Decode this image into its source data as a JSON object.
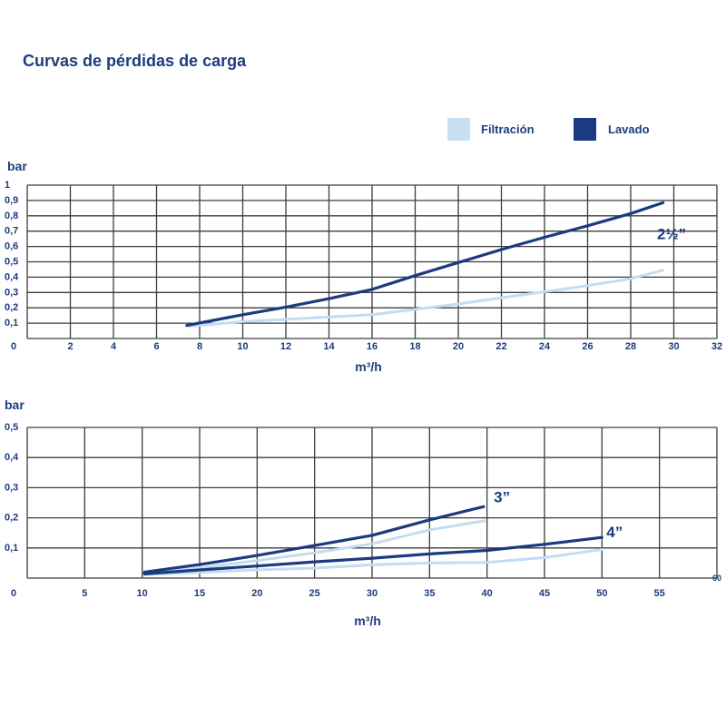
{
  "page": {
    "title": "Curvas de pérdidas de carga"
  },
  "legend": {
    "items": [
      {
        "label": "Filtración",
        "color": "#c8e0f2"
      },
      {
        "label": "Lavado",
        "color": "#1b3a80"
      }
    ]
  },
  "colors": {
    "filtracion": "#c3ddf0",
    "lavado": "#1b3a80",
    "grid": "#3d3d3d",
    "text": "#1c3d7e"
  },
  "chart_data": [
    {
      "type": "line",
      "title": "",
      "ylabel": "bar",
      "xlabel": "m³/h",
      "xlim": [
        0,
        32
      ],
      "ylim": [
        0,
        1
      ],
      "grid": true,
      "x_ticks": [
        {
          "v": 0,
          "label": "0"
        },
        {
          "v": 2,
          "label": "2"
        },
        {
          "v": 4,
          "label": "4"
        },
        {
          "v": 6,
          "label": "6"
        },
        {
          "v": 8,
          "label": "8"
        },
        {
          "v": 10,
          "label": "10"
        },
        {
          "v": 12,
          "label": "12"
        },
        {
          "v": 14,
          "label": "14"
        },
        {
          "v": 16,
          "label": "16"
        },
        {
          "v": 18,
          "label": "18"
        },
        {
          "v": 20,
          "label": "20"
        },
        {
          "v": 22,
          "label": "22"
        },
        {
          "v": 24,
          "label": "24"
        },
        {
          "v": 26,
          "label": "26"
        },
        {
          "v": 28,
          "label": "28"
        },
        {
          "v": 30,
          "label": "30"
        },
        {
          "v": 32,
          "label": "32"
        }
      ],
      "y_ticks": [
        {
          "v": 0.1,
          "label": "0,1"
        },
        {
          "v": 0.2,
          "label": "0,2"
        },
        {
          "v": 0.3,
          "label": "0,3"
        },
        {
          "v": 0.4,
          "label": "0,4"
        },
        {
          "v": 0.5,
          "label": "0,5"
        },
        {
          "v": 0.6,
          "label": "0,6"
        },
        {
          "v": 0.7,
          "label": "0,7"
        },
        {
          "v": 0.8,
          "label": "0,8"
        },
        {
          "v": 0.9,
          "label": "0,9"
        },
        {
          "v": 1,
          "label": "1"
        }
      ],
      "series": [
        {
          "name": "Filtración 2½\"",
          "color_key": "filtracion",
          "width": 3,
          "points": [
            [
              7.5,
              0.08
            ],
            [
              10,
              0.11
            ],
            [
              12,
              0.125
            ],
            [
              14,
              0.14
            ],
            [
              16,
              0.155
            ],
            [
              18,
              0.19
            ],
            [
              20,
              0.225
            ],
            [
              22,
              0.265
            ],
            [
              24,
              0.305
            ],
            [
              26,
              0.345
            ],
            [
              28,
              0.39
            ],
            [
              29.5,
              0.445
            ]
          ]
        },
        {
          "name": "Lavado 2½\"",
          "color_key": "lavado",
          "width": 3.2,
          "points": [
            [
              7.4,
              0.085
            ],
            [
              10,
              0.155
            ],
            [
              12,
              0.205
            ],
            [
              14,
              0.26
            ],
            [
              16,
              0.32
            ],
            [
              18,
              0.41
            ],
            [
              20,
              0.495
            ],
            [
              22,
              0.58
            ],
            [
              24,
              0.66
            ],
            [
              26,
              0.735
            ],
            [
              28,
              0.815
            ],
            [
              29.5,
              0.885
            ]
          ]
        }
      ],
      "annotations": [
        {
          "text": "2½”",
          "x": 29.9,
          "y": 0.68
        }
      ]
    },
    {
      "type": "line",
      "title": "",
      "ylabel": "bar",
      "xlabel": "m³/h",
      "xlim": [
        0,
        60
      ],
      "ylim": [
        0,
        0.5
      ],
      "grid": true,
      "x_ticks": [
        {
          "v": 0,
          "label": "0"
        },
        {
          "v": 5,
          "label": "5"
        },
        {
          "v": 10,
          "label": "10"
        },
        {
          "v": 15,
          "label": "15"
        },
        {
          "v": 20,
          "label": "20"
        },
        {
          "v": 25,
          "label": "25"
        },
        {
          "v": 30,
          "label": "30"
        },
        {
          "v": 35,
          "label": "35"
        },
        {
          "v": 40,
          "label": "40"
        },
        {
          "v": 45,
          "label": "45"
        },
        {
          "v": 50,
          "label": "50"
        },
        {
          "v": 55,
          "label": "55"
        },
        {
          "v": 60,
          "label": "60",
          "edge": true
        }
      ],
      "y_ticks": [
        {
          "v": 0.1,
          "label": "0,1"
        },
        {
          "v": 0.2,
          "label": "0,2"
        },
        {
          "v": 0.3,
          "label": "0,3"
        },
        {
          "v": 0.4,
          "label": "0,4"
        },
        {
          "v": 0.5,
          "label": "0,5"
        }
      ],
      "series": [
        {
          "name": "Filtración 3\"",
          "color_key": "filtracion",
          "width": 3,
          "points": [
            [
              10.2,
              0.017
            ],
            [
              15,
              0.034
            ],
            [
              20,
              0.058
            ],
            [
              25,
              0.084
            ],
            [
              30,
              0.114
            ],
            [
              35,
              0.16
            ],
            [
              39.8,
              0.19
            ]
          ]
        },
        {
          "name": "Filtración 4\"",
          "color_key": "filtracion",
          "width": 3,
          "points": [
            [
              10.2,
              0.011
            ],
            [
              15,
              0.019
            ],
            [
              20,
              0.027
            ],
            [
              25,
              0.033
            ],
            [
              30,
              0.044
            ],
            [
              35,
              0.05
            ],
            [
              40,
              0.052
            ],
            [
              45,
              0.068
            ],
            [
              50,
              0.095
            ]
          ]
        },
        {
          "name": "Lavado 3\"",
          "color_key": "lavado",
          "width": 3.2,
          "points": [
            [
              10.2,
              0.02
            ],
            [
              15,
              0.045
            ],
            [
              20,
              0.075
            ],
            [
              25,
              0.108
            ],
            [
              30,
              0.142
            ],
            [
              35,
              0.193
            ],
            [
              39.7,
              0.237
            ]
          ]
        },
        {
          "name": "Lavado 4\"",
          "color_key": "lavado",
          "width": 3.2,
          "points": [
            [
              10.2,
              0.014
            ],
            [
              15,
              0.027
            ],
            [
              20,
              0.04
            ],
            [
              25,
              0.054
            ],
            [
              30,
              0.066
            ],
            [
              35,
              0.08
            ],
            [
              40,
              0.092
            ],
            [
              45,
              0.112
            ],
            [
              50,
              0.135
            ]
          ]
        }
      ],
      "annotations": [
        {
          "text": "3”",
          "x": 41.3,
          "y": 0.268
        },
        {
          "text": "4”",
          "x": 51.1,
          "y": 0.152
        }
      ]
    }
  ]
}
